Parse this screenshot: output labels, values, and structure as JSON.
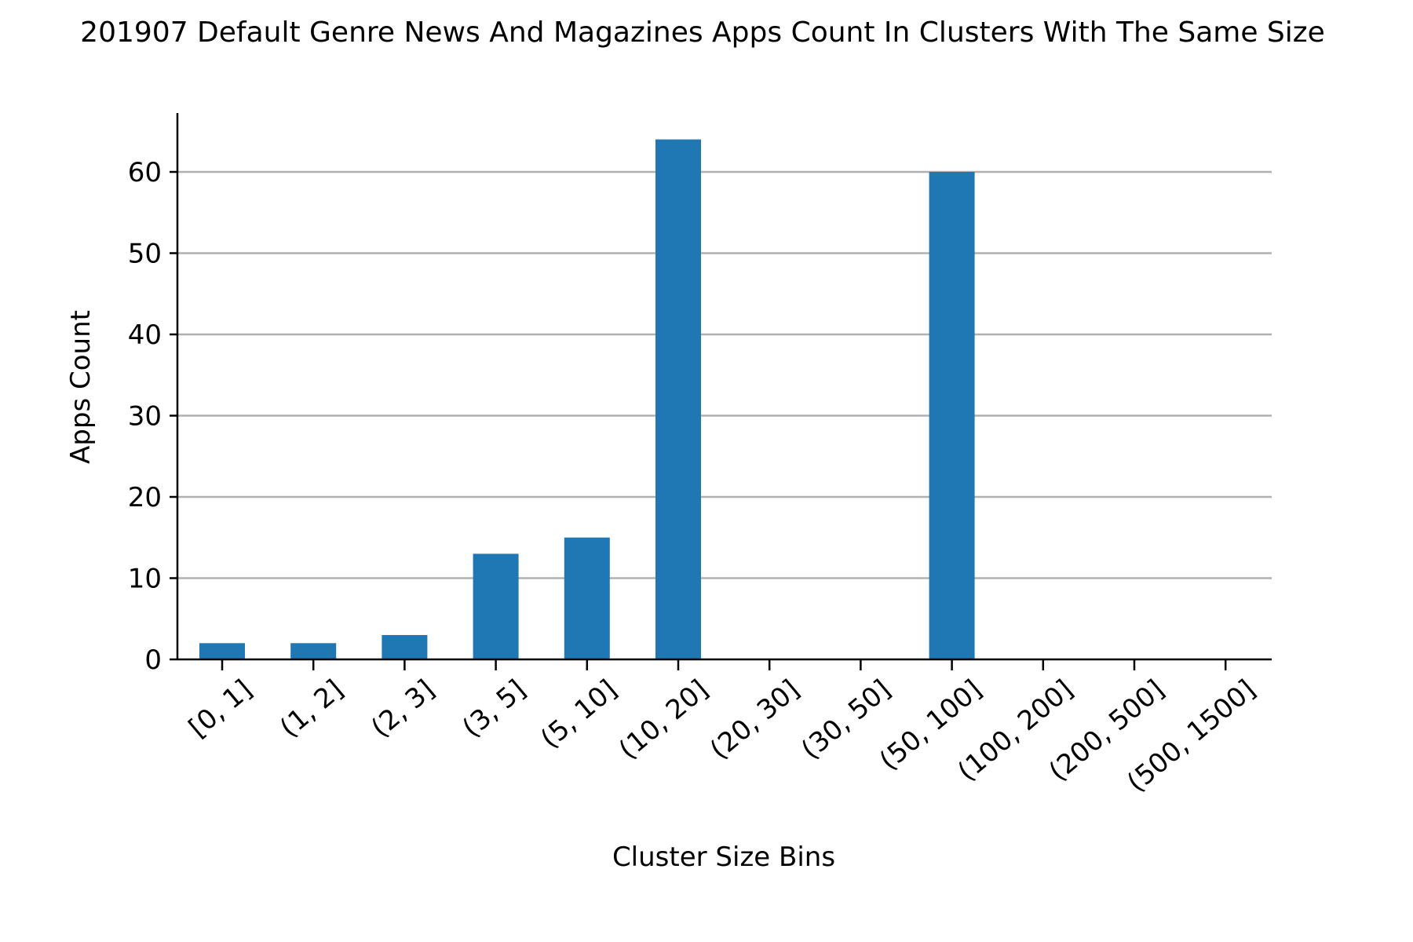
{
  "chart_data": {
    "type": "bar",
    "title": "201907 Default Genre News And Magazines Apps Count In Clusters With The Same Size",
    "xlabel": "Cluster Size Bins",
    "ylabel": "Apps Count",
    "categories": [
      "[0, 1]",
      "(1, 2]",
      "(2, 3]",
      "(3, 5]",
      "(5, 10]",
      "(10, 20]",
      "(20, 30]",
      "(30, 50]",
      "(50, 100]",
      "(100, 200]",
      "(200, 500]",
      "(500, 1500]"
    ],
    "values": [
      2,
      2,
      3,
      13,
      15,
      64,
      0,
      0,
      60,
      0,
      0,
      0
    ],
    "yticks": [
      0,
      10,
      20,
      30,
      40,
      50,
      60
    ],
    "ylim": [
      0,
      67
    ],
    "grid": "y",
    "legend": "none",
    "colors": {
      "bar": "#1f77b4",
      "grid": "#b0b0b0",
      "axis": "#000000"
    }
  }
}
